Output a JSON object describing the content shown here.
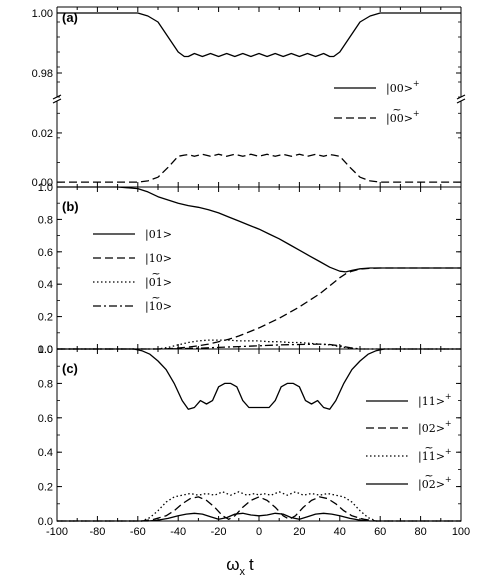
{
  "xlabel_main": "ω",
  "xlabel_sub": "x",
  "xlabel_t": "t",
  "chart_data": [
    {
      "type": "line",
      "panel": "(a)",
      "xlim": [
        -100,
        100
      ],
      "x_ticks": [],
      "broken_axis": true,
      "upper": {
        "ylim": [
          0.972,
          1.002
        ],
        "y_ticks": [
          "1.00",
          "0.98"
        ],
        "y_tick_values": [
          1.0,
          0.98
        ]
      },
      "lower": {
        "ylim": [
          -0.002,
          0.033
        ],
        "y_ticks": [
          "0.02",
          "0.00"
        ],
        "y_tick_values": [
          0.02,
          0.0
        ]
      },
      "series": [
        {
          "name": "|00>+",
          "style": "solid",
          "segment": "upper",
          "x": [
            -100,
            -60,
            -55,
            -50,
            -45,
            -40,
            -37,
            -35,
            -32,
            -28,
            -24,
            -20,
            -16,
            -12,
            -8,
            -4,
            0,
            4,
            8,
            12,
            16,
            20,
            24,
            28,
            32,
            35,
            37,
            40,
            45,
            50,
            55,
            60,
            100
          ],
          "y": [
            1.0,
            1.0,
            0.999,
            0.997,
            0.992,
            0.987,
            0.9855,
            0.9855,
            0.9865,
            0.9855,
            0.9865,
            0.9855,
            0.9865,
            0.9855,
            0.9865,
            0.9855,
            0.9865,
            0.9855,
            0.9865,
            0.9855,
            0.9865,
            0.9855,
            0.9865,
            0.9855,
            0.9865,
            0.9855,
            0.9855,
            0.987,
            0.992,
            0.997,
            0.999,
            1.0,
            1.0
          ]
        },
        {
          "name": "|00>+~",
          "style": "dashed",
          "segment": "lower",
          "x": [
            -100,
            -60,
            -55,
            -50,
            -45,
            -40,
            -37,
            -35,
            -32,
            -28,
            -24,
            -20,
            -16,
            -12,
            -8,
            -4,
            0,
            4,
            8,
            12,
            16,
            20,
            24,
            28,
            32,
            35,
            37,
            40,
            45,
            50,
            55,
            60,
            100
          ],
          "y": [
            0.0,
            0.0,
            0.0005,
            0.002,
            0.006,
            0.0105,
            0.011,
            0.0112,
            0.0105,
            0.0113,
            0.0105,
            0.0113,
            0.0105,
            0.0113,
            0.0105,
            0.0113,
            0.0105,
            0.0113,
            0.0105,
            0.0113,
            0.0105,
            0.0113,
            0.0105,
            0.0113,
            0.0105,
            0.0112,
            0.011,
            0.0105,
            0.006,
            0.002,
            0.0005,
            0.0,
            0.0
          ]
        }
      ]
    },
    {
      "type": "line",
      "panel": "(b)",
      "xlim": [
        -100,
        100
      ],
      "ylim": [
        0,
        1.0
      ],
      "y_ticks": [
        "1.0",
        "0.8",
        "0.6",
        "0.4",
        "0.2",
        "0.0"
      ],
      "y_tick_values": [
        1.0,
        0.8,
        0.6,
        0.4,
        0.2,
        0.0
      ],
      "series": [
        {
          "name": "|01>",
          "style": "solid",
          "x": [
            -100,
            -70,
            -60,
            -55,
            -50,
            -45,
            -40,
            -35,
            -30,
            -25,
            -20,
            -15,
            -10,
            -5,
            0,
            5,
            10,
            15,
            20,
            25,
            30,
            35,
            40,
            43,
            46,
            50,
            55,
            60,
            100
          ],
          "y": [
            1.0,
            1.0,
            0.99,
            0.97,
            0.94,
            0.92,
            0.9,
            0.885,
            0.875,
            0.86,
            0.84,
            0.815,
            0.79,
            0.765,
            0.74,
            0.71,
            0.68,
            0.645,
            0.61,
            0.575,
            0.54,
            0.505,
            0.48,
            0.476,
            0.485,
            0.495,
            0.5,
            0.5,
            0.5
          ]
        },
        {
          "name": "|10>",
          "style": "dashed",
          "x": [
            -100,
            -50,
            -45,
            -40,
            -35,
            -30,
            -25,
            -20,
            -15,
            -10,
            -5,
            0,
            5,
            10,
            15,
            20,
            25,
            30,
            35,
            40,
            43,
            46,
            50,
            55,
            60,
            100
          ],
          "y": [
            0.0,
            0.0,
            0.002,
            0.006,
            0.012,
            0.02,
            0.03,
            0.045,
            0.06,
            0.08,
            0.105,
            0.13,
            0.16,
            0.19,
            0.225,
            0.26,
            0.3,
            0.34,
            0.39,
            0.44,
            0.465,
            0.48,
            0.493,
            0.498,
            0.5,
            0.5
          ]
        },
        {
          "name": "|01>~",
          "style": "dotted",
          "x": [
            -100,
            -50,
            -45,
            -40,
            -35,
            -30,
            -25,
            -20,
            -15,
            -10,
            -5,
            0,
            5,
            10,
            15,
            20,
            25,
            30,
            35,
            40,
            45,
            50,
            100
          ],
          "y": [
            0.0,
            0.0,
            0.01,
            0.025,
            0.04,
            0.05,
            0.055,
            0.055,
            0.055,
            0.05,
            0.05,
            0.05,
            0.045,
            0.045,
            0.04,
            0.04,
            0.035,
            0.03,
            0.025,
            0.015,
            0.005,
            0.0,
            0.0
          ]
        },
        {
          "name": "|10>~",
          "style": "dashdot",
          "x": [
            -100,
            -50,
            -40,
            -30,
            -20,
            -10,
            0,
            10,
            20,
            30,
            35,
            40,
            45,
            50,
            100
          ],
          "y": [
            0.0,
            0.0,
            0.002,
            0.005,
            0.01,
            0.015,
            0.02,
            0.025,
            0.028,
            0.03,
            0.028,
            0.02,
            0.008,
            0.0,
            0.0
          ]
        }
      ]
    },
    {
      "type": "line",
      "panel": "(c)",
      "xlim": [
        -100,
        100
      ],
      "ylim": [
        0,
        1.0
      ],
      "x_ticks": [
        "-100",
        "-80",
        "-60",
        "-40",
        "-20",
        "0",
        "20",
        "40",
        "60",
        "80",
        "100"
      ],
      "x_tick_values": [
        -100,
        -80,
        -60,
        -40,
        -20,
        0,
        20,
        40,
        60,
        80,
        100
      ],
      "y_ticks": [
        "1.0",
        "0.8",
        "0.6",
        "0.4",
        "0.2",
        "0.0"
      ],
      "y_tick_values": [
        1.0,
        0.8,
        0.6,
        0.4,
        0.2,
        0.0
      ],
      "series": [
        {
          "name": "|11>+",
          "style": "solid",
          "x": [
            -100,
            -62,
            -58,
            -54,
            -50,
            -46,
            -42,
            -38,
            -35,
            -32,
            -29,
            -26,
            -23,
            -20,
            -17,
            -14,
            -11,
            -8,
            -5,
            -2,
            0,
            2,
            5,
            8,
            11,
            14,
            17,
            20,
            23,
            26,
            29,
            32,
            35,
            38,
            42,
            46,
            50,
            54,
            58,
            62,
            100
          ],
          "y": [
            1.0,
            1.0,
            0.99,
            0.97,
            0.93,
            0.88,
            0.8,
            0.7,
            0.65,
            0.66,
            0.7,
            0.68,
            0.7,
            0.78,
            0.8,
            0.8,
            0.78,
            0.7,
            0.66,
            0.66,
            0.66,
            0.66,
            0.66,
            0.7,
            0.78,
            0.8,
            0.8,
            0.78,
            0.7,
            0.68,
            0.7,
            0.66,
            0.65,
            0.7,
            0.8,
            0.88,
            0.93,
            0.97,
            0.99,
            1.0,
            1.0
          ]
        },
        {
          "name": "|02>+",
          "style": "dashed",
          "x": [
            -100,
            -58,
            -52,
            -46,
            -42,
            -38,
            -34,
            -30,
            -26,
            -22,
            -18,
            -15,
            -12,
            -8,
            -4,
            0,
            4,
            8,
            12,
            15,
            18,
            22,
            26,
            30,
            34,
            38,
            42,
            46,
            52,
            58,
            100
          ],
          "y": [
            0.0,
            0.0,
            0.01,
            0.03,
            0.06,
            0.1,
            0.13,
            0.14,
            0.12,
            0.08,
            0.03,
            0.01,
            0.03,
            0.08,
            0.12,
            0.14,
            0.12,
            0.08,
            0.03,
            0.01,
            0.03,
            0.08,
            0.12,
            0.14,
            0.13,
            0.1,
            0.06,
            0.03,
            0.01,
            0.0,
            0.0
          ]
        },
        {
          "name": "|11>+~",
          "style": "dotted",
          "x": [
            -100,
            -58,
            -54,
            -50,
            -46,
            -42,
            -38,
            -34,
            -30,
            -26,
            -22,
            -18,
            -14,
            -10,
            -6,
            -2,
            0,
            2,
            6,
            10,
            14,
            18,
            22,
            26,
            30,
            34,
            38,
            42,
            46,
            50,
            54,
            58,
            100
          ],
          "y": [
            0.0,
            0.0,
            0.02,
            0.06,
            0.11,
            0.14,
            0.15,
            0.16,
            0.15,
            0.16,
            0.15,
            0.17,
            0.15,
            0.17,
            0.15,
            0.16,
            0.15,
            0.16,
            0.15,
            0.17,
            0.15,
            0.17,
            0.15,
            0.16,
            0.15,
            0.16,
            0.15,
            0.14,
            0.11,
            0.06,
            0.02,
            0.0,
            0.0
          ]
        },
        {
          "name": "|02>+~",
          "style": "solid",
          "x": [
            -100,
            -55,
            -50,
            -45,
            -40,
            -36,
            -32,
            -28,
            -24,
            -20,
            -16,
            -12,
            -8,
            -4,
            0,
            4,
            8,
            12,
            16,
            20,
            24,
            28,
            32,
            36,
            40,
            45,
            50,
            55,
            100
          ],
          "y": [
            0.0,
            0.0,
            0.005,
            0.015,
            0.03,
            0.04,
            0.045,
            0.04,
            0.025,
            0.01,
            0.02,
            0.04,
            0.045,
            0.035,
            0.03,
            0.035,
            0.045,
            0.04,
            0.02,
            0.01,
            0.025,
            0.04,
            0.045,
            0.04,
            0.03,
            0.015,
            0.005,
            0.0,
            0.0
          ]
        }
      ]
    }
  ]
}
